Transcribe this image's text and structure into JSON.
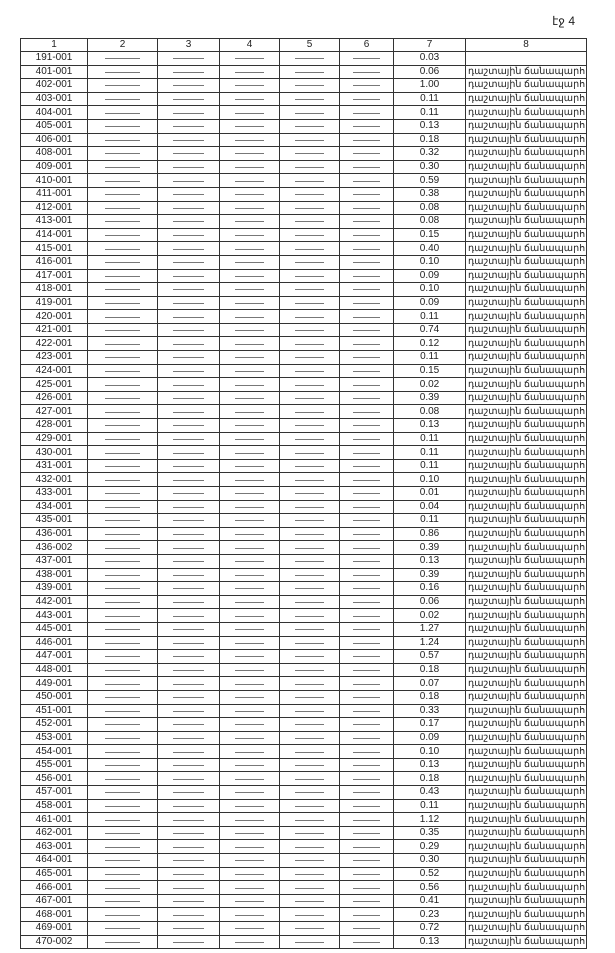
{
  "header": {
    "page": "էջ 4"
  },
  "table": {
    "columns": [
      "1",
      "2",
      "3",
      "4",
      "5",
      "6",
      "7",
      "8"
    ],
    "rows": [
      [
        "191-001",
        "0.03"
      ],
      [
        "401-001",
        "0.06",
        "դաշտային ճանապարհ"
      ],
      [
        "402-001",
        "1.00",
        "դաշտային ճանապարհ"
      ],
      [
        "403-001",
        "0.11",
        "դաշտային ճանապարհ"
      ],
      [
        "404-001",
        "0.11",
        "դաշտային ճանապարհ"
      ],
      [
        "405-001",
        "0.13",
        "դաշտային ճանապարհ"
      ],
      [
        "406-001",
        "0.18",
        "դաշտային ճանապարհ"
      ],
      [
        "408-001",
        "0.32",
        "դաշտային ճանապարհ"
      ],
      [
        "409-001",
        "0.30",
        "դաշտային ճանապարհ"
      ],
      [
        "410-001",
        "0.59",
        "դաշտային ճանապարհ"
      ],
      [
        "411-001",
        "0.38",
        "դաշտային ճանապարհ"
      ],
      [
        "412-001",
        "0.08",
        "դաշտային ճանապարհ"
      ],
      [
        "413-001",
        "0.08",
        "դաշտային ճանապարհ"
      ],
      [
        "414-001",
        "0.15",
        "դաշտային ճանապարհ"
      ],
      [
        "415-001",
        "0.40",
        "դաշտային ճանապարհ"
      ],
      [
        "416-001",
        "0.10",
        "դաշտային ճանապարհ"
      ],
      [
        "417-001",
        "0.09",
        "դաշտային ճանապարհ"
      ],
      [
        "418-001",
        "0.10",
        "դաշտային ճանապարհ"
      ],
      [
        "419-001",
        "0.09",
        "դաշտային ճանապարհ"
      ],
      [
        "420-001",
        "0.11",
        "դաշտային ճանապարհ"
      ],
      [
        "421-001",
        "0.74",
        "դաշտային ճանապարհ"
      ],
      [
        "422-001",
        "0.12",
        "դաշտային ճանապարհ"
      ],
      [
        "423-001",
        "0.11",
        "դաշտային ճանապարհ"
      ],
      [
        "424-001",
        "0.15",
        "դաշտային ճանապարհ"
      ],
      [
        "425-001",
        "0.02",
        "դաշտային ճանապարհ"
      ],
      [
        "426-001",
        "0.39",
        "դաշտային ճանապարհ"
      ],
      [
        "427-001",
        "0.08",
        "դաշտային ճանապարհ"
      ],
      [
        "428-001",
        "0.13",
        "դաշտային ճանապարհ"
      ],
      [
        "429-001",
        "0.11",
        "դաշտային ճանապարհ"
      ],
      [
        "430-001",
        "0.11",
        "դաշտային ճանապարհ"
      ],
      [
        "431-001",
        "0.11",
        "դաշտային ճանապարհ"
      ],
      [
        "432-001",
        "0.10",
        "դաշտային ճանապարհ"
      ],
      [
        "433-001",
        "0.01",
        "դաշտային ճանապարհ"
      ],
      [
        "434-001",
        "0.04",
        "դաշտային ճանապարհ"
      ],
      [
        "435-001",
        "0.11",
        "դաշտային ճանապարհ"
      ],
      [
        "436-001",
        "0.86",
        "դաշտային ճանապարհ"
      ],
      [
        "436-002",
        "0.39",
        "դաշտային ճանապարհ"
      ],
      [
        "437-001",
        "0.13",
        "դաշտային ճանապարհ"
      ],
      [
        "438-001",
        "0.39",
        "դաշտային ճանապարհ"
      ],
      [
        "439-001",
        "0.16",
        "դաշտային ճանապարհ"
      ],
      [
        "442-001",
        "0.06",
        "դաշտային ճանապարհ"
      ],
      [
        "443-001",
        "0.02",
        "դաշտային ճանապարհ"
      ],
      [
        "445-001",
        "1.27",
        "դաշտային ճանապարհ"
      ],
      [
        "446-001",
        "1.24",
        "դաշտային ճանապարհ"
      ],
      [
        "447-001",
        "0.57",
        "դաշտային ճանապարհ"
      ],
      [
        "448-001",
        "0.18",
        "դաշտային ճանապարհ"
      ],
      [
        "449-001",
        "0.07",
        "դաշտային ճանապարհ"
      ],
      [
        "450-001",
        "0.18",
        "դաշտային ճանապարհ"
      ],
      [
        "451-001",
        "0.33",
        "դաշտային ճանապարհ"
      ],
      [
        "452-001",
        "0.17",
        "դաշտային ճանապարհ"
      ],
      [
        "453-001",
        "0.09",
        "դաշտային ճանապարհ"
      ],
      [
        "454-001",
        "0.10",
        "դաշտային ճանապարհ"
      ],
      [
        "455-001",
        "0.13",
        "դաշտային ճանապարհ"
      ],
      [
        "456-001",
        "0.18",
        "դաշտային ճանապարհ"
      ],
      [
        "457-001",
        "0.43",
        "դաշտային ճանապարհ"
      ],
      [
        "458-001",
        "0.11",
        "դաշտային ճանապարհ"
      ],
      [
        "461-001",
        "1.12",
        "դաշտային ճանապարհ"
      ],
      [
        "462-001",
        "0.35",
        "դաշտային ճանապարհ"
      ],
      [
        "463-001",
        "0.29",
        "դաշտային ճանապարհ"
      ],
      [
        "464-001",
        "0.30",
        "դաշտային ճանապարհ"
      ],
      [
        "465-001",
        "0.52",
        "դաշտային ճանապարհ"
      ],
      [
        "466-001",
        "0.56",
        "դաշտային ճանապարհ"
      ],
      [
        "467-001",
        "0.41",
        "դաշտային ճանապարհ"
      ],
      [
        "468-001",
        "0.23",
        "դաշտային ճանապարհ"
      ],
      [
        "469-001",
        "0.72",
        "դաշտային ճանապարհ"
      ],
      [
        "470-002",
        "0.13",
        "դաշտային ճանապարհ"
      ]
    ]
  }
}
